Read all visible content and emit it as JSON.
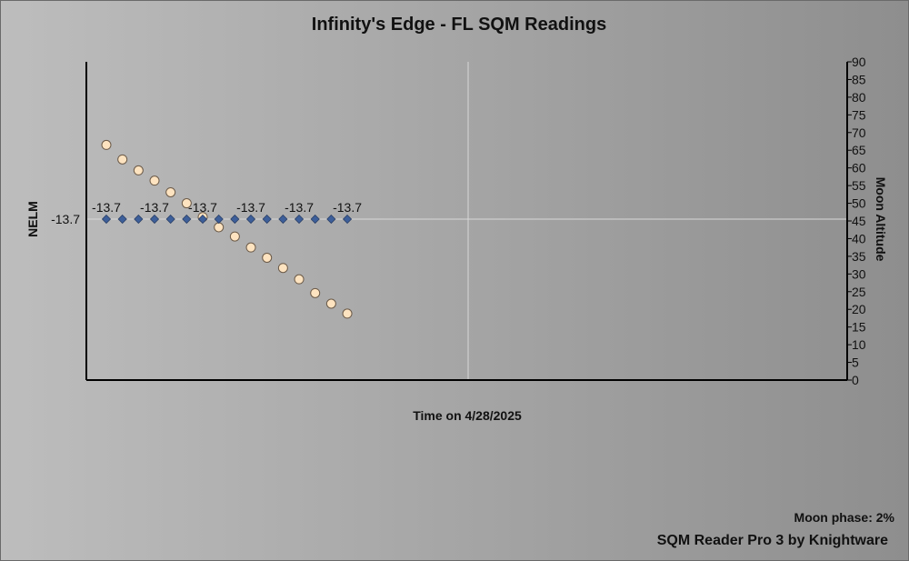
{
  "chart_data": {
    "type": "scatter",
    "title": "Infinity's Edge - FL SQM Readings",
    "xlabel": "Time on 4/28/2025",
    "ylabel_left": "NELM",
    "ylabel_right": "Moon Altitude",
    "y_left_ticks": [
      "-13.7"
    ],
    "y_right_ticks": [
      0,
      5,
      10,
      15,
      20,
      25,
      30,
      35,
      40,
      45,
      50,
      55,
      60,
      65,
      70,
      75,
      80,
      85,
      90
    ],
    "y_right_range": [
      0,
      90
    ],
    "grid": true,
    "series": [
      {
        "name": "NELM",
        "axis": "left",
        "marker": "diamond",
        "color": "#3d5f9a",
        "values": [
          -13.7,
          -13.7,
          -13.7,
          -13.7,
          -13.7,
          -13.7,
          -13.7,
          -13.7,
          -13.7,
          -13.7,
          -13.7,
          -13.7,
          -13.7,
          -13.7,
          -13.7,
          -13.7
        ],
        "labels": [
          "-13.7",
          "-13.7",
          "-13.7",
          "-13.7",
          "-13.7",
          "-13.7"
        ]
      },
      {
        "name": "Moon Altitude",
        "axis": "right",
        "marker": "circle",
        "color": "#fde3c0",
        "values": [
          66.5,
          62.4,
          59.3,
          56.4,
          53.1,
          50.0,
          46.1,
          43.2,
          40.6,
          37.5,
          34.6,
          31.7,
          28.5,
          24.6,
          21.6,
          18.8
        ]
      }
    ]
  },
  "footer": {
    "moon_phase": "Moon phase: 2%",
    "credit": "SQM Reader Pro 3 by Knightware"
  }
}
